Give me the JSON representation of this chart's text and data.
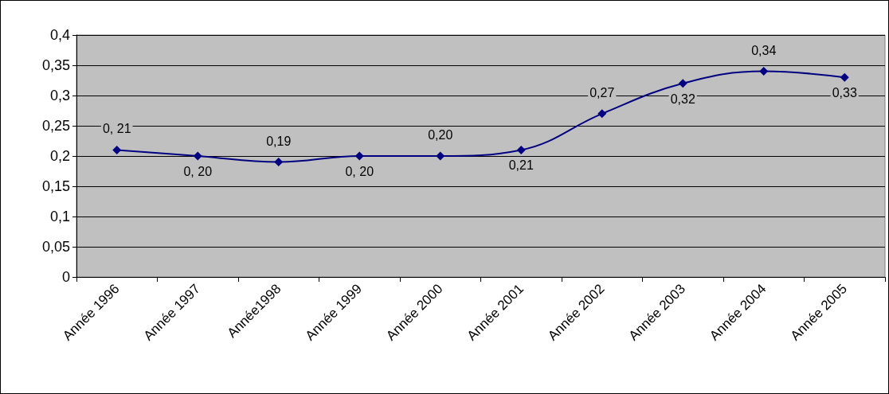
{
  "chart_data": {
    "type": "line",
    "categories": [
      "Année 1996",
      "Année 1997",
      "Année1998",
      "Année 1999",
      "Année 2000",
      "Année 2001",
      "Année 2002",
      "Année 2003",
      "Année 2004",
      "Année 2005"
    ],
    "series": [
      {
        "color": "#000080",
        "values": [
          0.21,
          0.2,
          0.19,
          0.2,
          0.2,
          0.21,
          0.27,
          0.32,
          0.34,
          0.33
        ],
        "value_labels": [
          "0, 21",
          "0, 20",
          "0,19",
          "0, 20",
          "0,20",
          "0,21",
          "0,27",
          "0,32",
          "0,34",
          "0,33"
        ]
      }
    ],
    "ylim": [
      0,
      0.4
    ],
    "yticks": [
      {
        "value": 0,
        "label": "0"
      },
      {
        "value": 0.05,
        "label": "0,05"
      },
      {
        "value": 0.1,
        "label": "0,1"
      },
      {
        "value": 0.15,
        "label": "0,15"
      },
      {
        "value": 0.2,
        "label": "0,2"
      },
      {
        "value": 0.25,
        "label": "0,25"
      },
      {
        "value": 0.3,
        "label": "0,3"
      },
      {
        "value": 0.35,
        "label": "0,35"
      },
      {
        "value": 0.4,
        "label": "0,4"
      }
    ],
    "grid": "y",
    "marker": "diamond",
    "line_style": "solid"
  }
}
